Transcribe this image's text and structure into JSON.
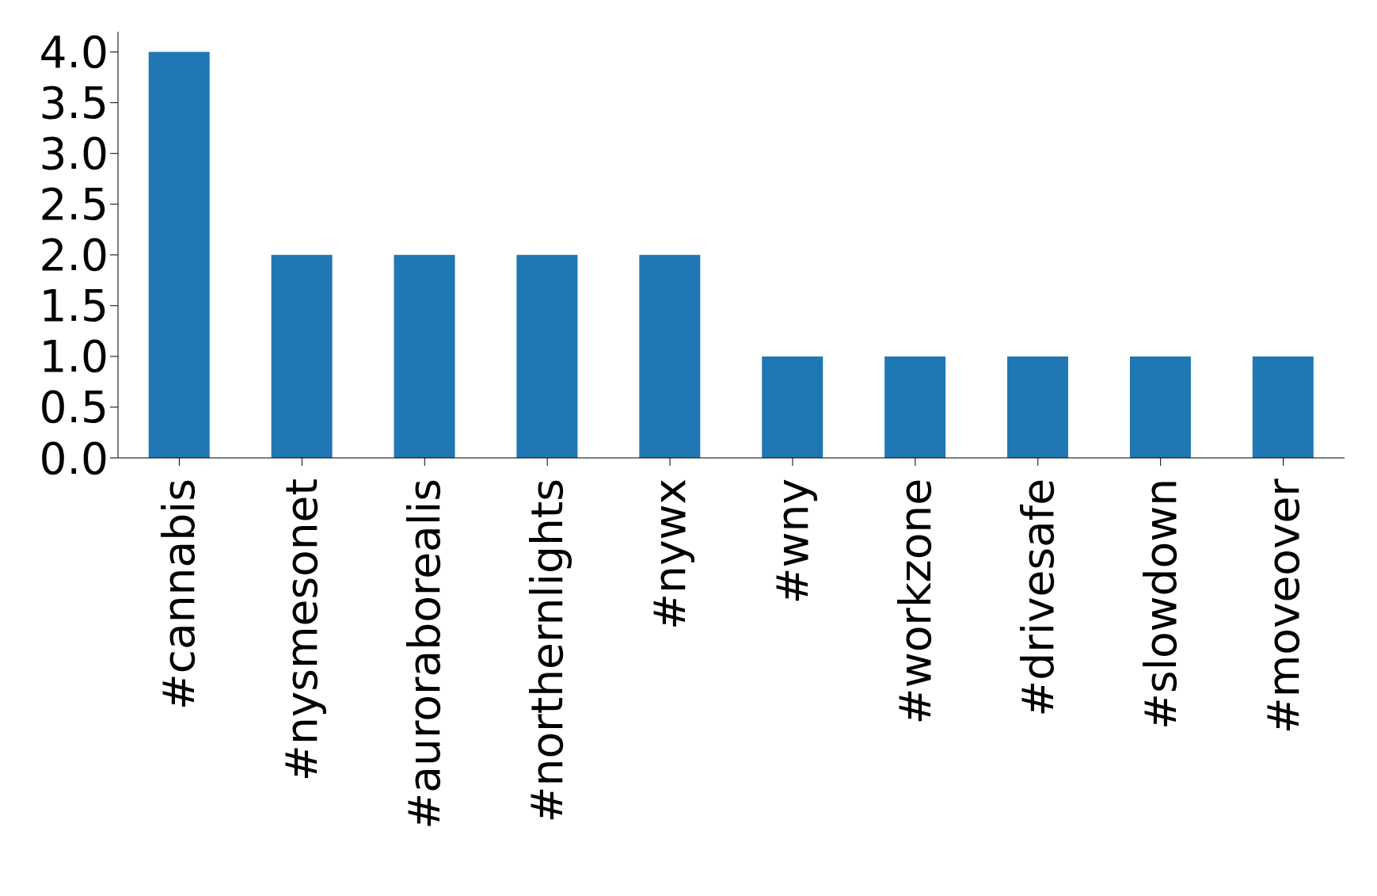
{
  "chart_data": {
    "type": "bar",
    "categories": [
      "#cannabis",
      "#nysmesonet",
      "#auroraborealis",
      "#northernlights",
      "#nywx",
      "#wny",
      "#workzone",
      "#drivesafe",
      "#slowdown",
      "#moveover"
    ],
    "values": [
      4,
      2,
      2,
      2,
      2,
      1,
      1,
      1,
      1,
      1
    ],
    "color": "#1f77b4",
    "ylim": [
      0,
      4.2
    ],
    "yticks": [
      {
        "value": 0,
        "label": "0.0"
      },
      {
        "value": 0.5,
        "label": "0.5"
      },
      {
        "value": 1,
        "label": "1.0"
      },
      {
        "value": 1.5,
        "label": "1.5"
      },
      {
        "value": 2,
        "label": "2.0"
      },
      {
        "value": 2.5,
        "label": "2.5"
      },
      {
        "value": 3,
        "label": "3.0"
      },
      {
        "value": 3.5,
        "label": "3.5"
      },
      {
        "value": 4,
        "label": "4.0"
      }
    ],
    "grid": false,
    "legend": false
  }
}
